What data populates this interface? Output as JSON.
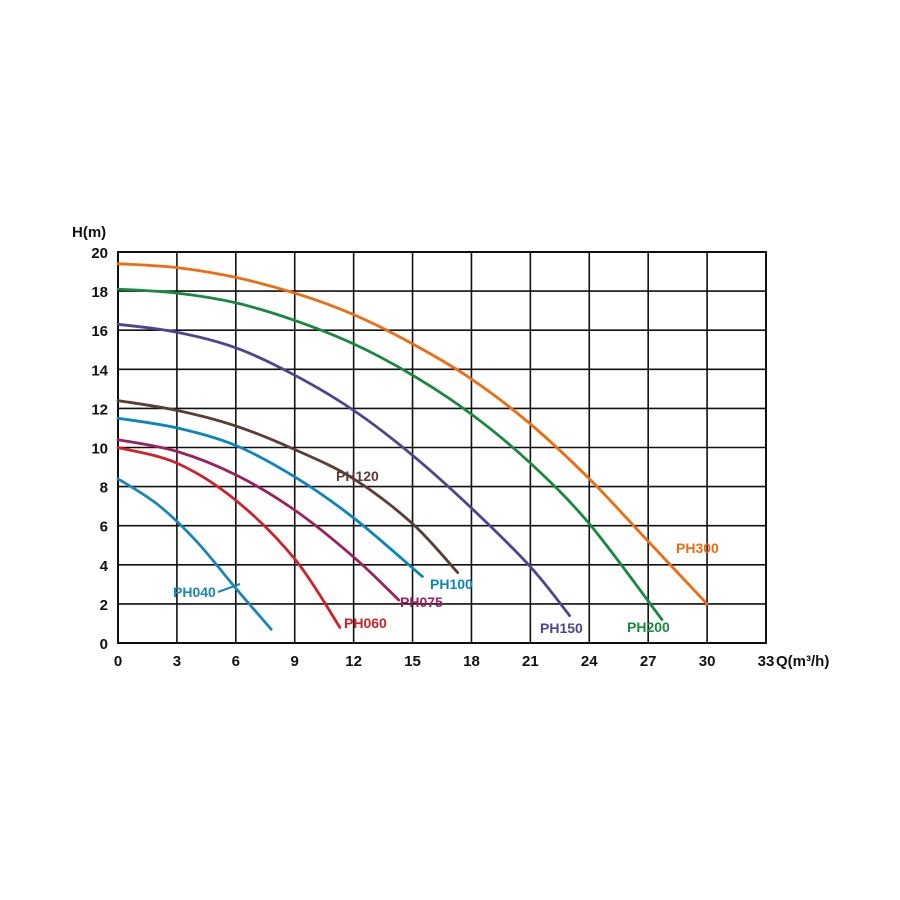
{
  "chart_data": {
    "type": "line",
    "xlabel": "Q(m³/h)",
    "ylabel": "H(m)",
    "xlim": [
      0,
      33
    ],
    "ylim": [
      0,
      20
    ],
    "x_ticks": [
      "0",
      "3",
      "6",
      "9",
      "12",
      "15",
      "18",
      "21",
      "24",
      "27",
      "30",
      "33"
    ],
    "y_ticks": [
      "0",
      "2",
      "4",
      "6",
      "8",
      "10",
      "12",
      "14",
      "16",
      "18",
      "20"
    ],
    "grid": true,
    "series": [
      {
        "name": "PH040",
        "color": "#1b86b8",
        "x": [
          0,
          2,
          4,
          6,
          7.8
        ],
        "y": [
          8.4,
          7.1,
          5.2,
          2.8,
          0.7
        ]
      },
      {
        "name": "PH060",
        "color": "#d1202b",
        "x": [
          0,
          3,
          6,
          9,
          11.3
        ],
        "y": [
          10,
          9.2,
          7.3,
          4.3,
          0.8
        ]
      },
      {
        "name": "PH075",
        "color": "#9a2060",
        "x": [
          0,
          3,
          6,
          9,
          12,
          14.3
        ],
        "y": [
          10.4,
          9.8,
          8.6,
          6.8,
          4.4,
          2.2
        ]
      },
      {
        "name": "PH100",
        "color": "#0a86bd",
        "x": [
          0,
          3,
          6,
          9,
          12,
          15.5
        ],
        "y": [
          11.5,
          11,
          10.1,
          8.5,
          6.4,
          3.4
        ]
      },
      {
        "name": "PH120",
        "color": "#5b3c37",
        "x": [
          0,
          3,
          6,
          9,
          12,
          15,
          17.3
        ],
        "y": [
          12.4,
          11.9,
          11.1,
          9.9,
          8.4,
          6.1,
          3.6
        ]
      },
      {
        "name": "PH150",
        "color": "#4d4590",
        "x": [
          0,
          3,
          6,
          9,
          12,
          15,
          18,
          21,
          23
        ],
        "y": [
          16.3,
          15.9,
          15.1,
          13.7,
          11.9,
          9.6,
          6.9,
          3.9,
          1.4
        ]
      },
      {
        "name": "PH200",
        "color": "#168a3f",
        "x": [
          0,
          3,
          6,
          9,
          12,
          15,
          18,
          21,
          24,
          27.7
        ],
        "y": [
          18.1,
          17.9,
          17.4,
          16.5,
          15.3,
          13.7,
          11.7,
          9.2,
          6.1,
          1.2
        ]
      },
      {
        "name": "PH300",
        "color": "#ee6c0f",
        "x": [
          0,
          3,
          6,
          9,
          12,
          15,
          18,
          21,
          24,
          27,
          30
        ],
        "y": [
          19.4,
          19.2,
          18.7,
          17.9,
          16.8,
          15.3,
          13.5,
          11.2,
          8.4,
          5.2,
          2
        ]
      }
    ]
  }
}
